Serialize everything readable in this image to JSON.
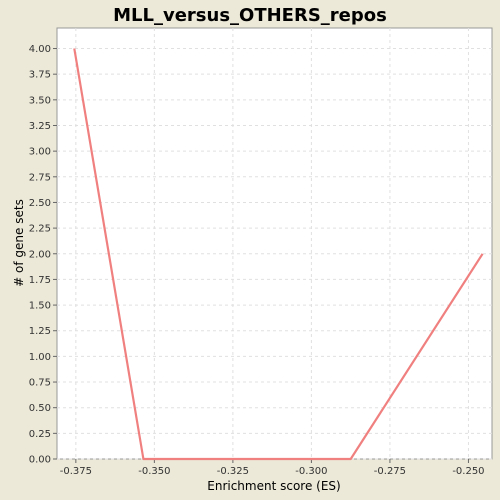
{
  "chart_data": {
    "type": "line",
    "title": "MLL_versus_OTHERS_repos",
    "xlabel": "Enrichment score (ES)",
    "ylabel": "# of gene sets",
    "xlim": [
      -0.381,
      -0.2425
    ],
    "ylim": [
      0,
      4.2
    ],
    "x_ticks": [
      "-0.375",
      "-0.350",
      "-0.325",
      "-0.300",
      "-0.275",
      "-0.250"
    ],
    "x_tick_values": [
      -0.375,
      -0.35,
      -0.325,
      -0.3,
      -0.275,
      -0.25
    ],
    "y_ticks": [
      "0.00",
      "0.25",
      "0.50",
      "0.75",
      "1.00",
      "1.25",
      "1.50",
      "1.75",
      "2.00",
      "2.25",
      "2.50",
      "2.75",
      "3.00",
      "3.25",
      "3.50",
      "3.75",
      "4.00"
    ],
    "y_tick_values": [
      0,
      0.25,
      0.5,
      0.75,
      1.0,
      1.25,
      1.5,
      1.75,
      2.0,
      2.25,
      2.5,
      2.75,
      3.0,
      3.25,
      3.5,
      3.75,
      4.0
    ],
    "grid": true,
    "series": [
      {
        "color": "#f08080",
        "x": [
          -0.3755,
          -0.3535,
          -0.2875,
          -0.2455
        ],
        "y": [
          4.0,
          0.0,
          0.0,
          2.0
        ]
      }
    ]
  }
}
